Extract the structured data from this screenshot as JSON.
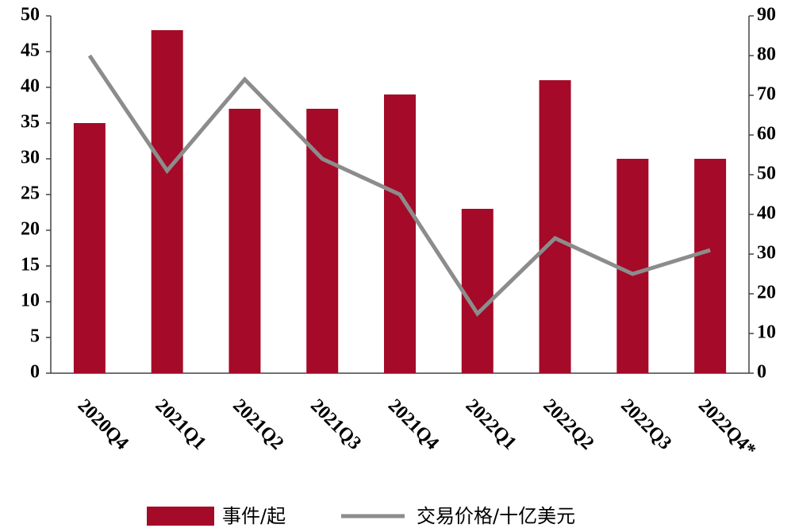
{
  "chart_data": {
    "type": "bar",
    "categories": [
      "2020Q4",
      "2021Q1",
      "2021Q2",
      "2021Q3",
      "2021Q4",
      "2022Q1",
      "2022Q2",
      "2022Q3",
      "2022Q4*"
    ],
    "series": [
      {
        "name": "事件/起",
        "type": "bar",
        "color": "#a50a28",
        "values": [
          35,
          48,
          37,
          37,
          39,
          23,
          41,
          30,
          30
        ]
      },
      {
        "name": "交易价格/十亿美元",
        "type": "line",
        "axis": "y2",
        "color": "#8c8c8c",
        "values": [
          80,
          51,
          74,
          54,
          45,
          15,
          34,
          25,
          31
        ]
      }
    ],
    "ylim": [
      0,
      50
    ],
    "yticks": [
      0,
      5,
      10,
      15,
      20,
      25,
      30,
      35,
      40,
      45,
      50
    ],
    "y2lim": [
      0,
      90
    ],
    "y2ticks": [
      0,
      10,
      20,
      30,
      40,
      50,
      60,
      70,
      80,
      90
    ],
    "legend": "bottom"
  }
}
